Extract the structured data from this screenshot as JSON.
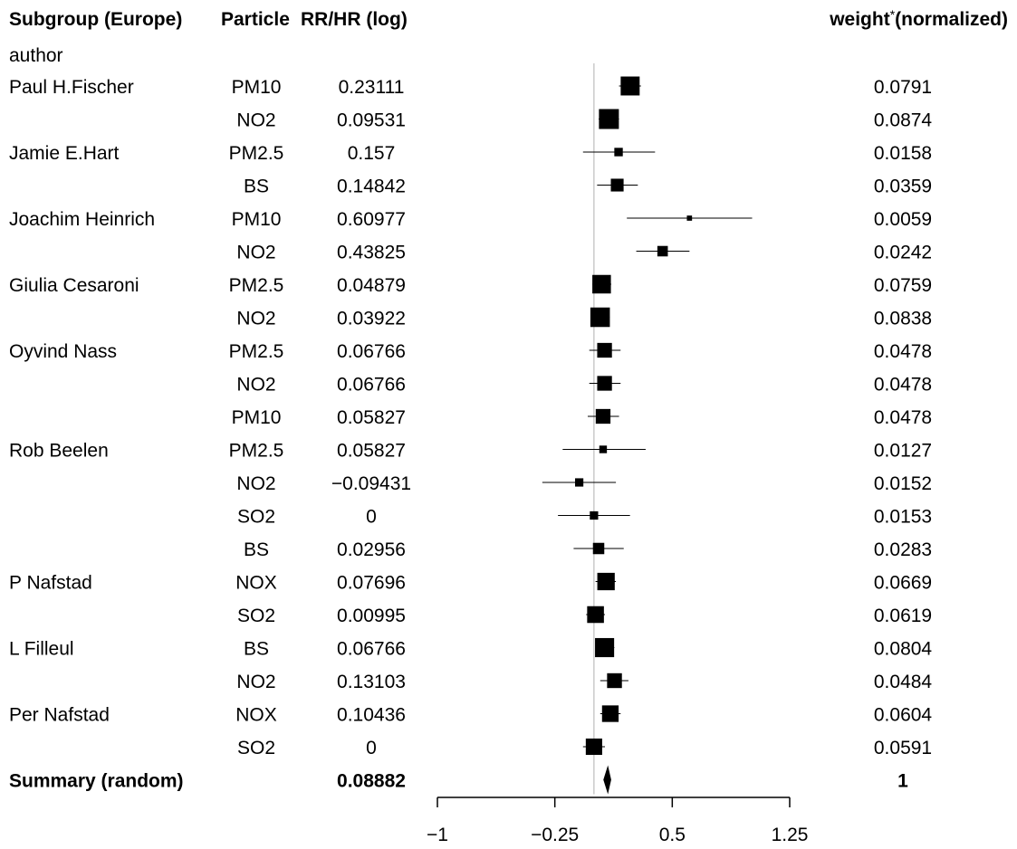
{
  "headers": {
    "subgroup": "Subgroup (Europe)",
    "particle": "Particle",
    "rrhr": "RR/HR (log)",
    "weight_main": "weight",
    "weight_star": "*",
    "weight_norm": "(normalized)",
    "author": "author"
  },
  "chart_data": {
    "type": "forest",
    "x_ticks": [
      "−1",
      "−0.25",
      "0.5",
      "1.25"
    ],
    "x_tick_values": [
      -1,
      -0.25,
      0.5,
      1.25
    ],
    "xlim": [
      -1,
      1.25
    ],
    "reference_line": 0,
    "colors": {
      "marks": "#000000",
      "reference_line": "#b0b0b0"
    },
    "rows": [
      {
        "author": "Paul H.Fischer",
        "particle": "PM10",
        "est_text": "0.23111",
        "est": 0.23111,
        "lo": 0.16,
        "hi": 0.3,
        "weight_text": "0.0791",
        "weight": 0.0791
      },
      {
        "author": "",
        "particle": "NO2",
        "est_text": "0.09531",
        "est": 0.09531,
        "lo": 0.03,
        "hi": 0.16,
        "weight_text": "0.0874",
        "weight": 0.0874
      },
      {
        "author": "Jamie E.Hart",
        "particle": "PM2.5",
        "est_text": "0.157",
        "est": 0.157,
        "lo": -0.07,
        "hi": 0.39,
        "weight_text": "0.0158",
        "weight": 0.0158
      },
      {
        "author": "",
        "particle": "BS",
        "est_text": "0.14842",
        "est": 0.14842,
        "lo": 0.02,
        "hi": 0.28,
        "weight_text": "0.0359",
        "weight": 0.0359
      },
      {
        "author": "Joachim Heinrich",
        "particle": "PM10",
        "est_text": "0.60977",
        "est": 0.60977,
        "lo": 0.21,
        "hi": 1.01,
        "weight_text": "0.0059",
        "weight": 0.0059
      },
      {
        "author": "",
        "particle": "NO2",
        "est_text": "0.43825",
        "est": 0.43825,
        "lo": 0.27,
        "hi": 0.61,
        "weight_text": "0.0242",
        "weight": 0.0242
      },
      {
        "author": "Giulia Cesaroni",
        "particle": "PM2.5",
        "est_text": "0.04879",
        "est": 0.04879,
        "lo": -0.01,
        "hi": 0.11,
        "weight_text": "0.0759",
        "weight": 0.0759
      },
      {
        "author": "",
        "particle": "NO2",
        "est_text": "0.03922",
        "est": 0.03922,
        "lo": -0.02,
        "hi": 0.1,
        "weight_text": "0.0838",
        "weight": 0.0838
      },
      {
        "author": "Oyvind Nass",
        "particle": "PM2.5",
        "est_text": "0.06766",
        "est": 0.06766,
        "lo": -0.03,
        "hi": 0.17,
        "weight_text": "0.0478",
        "weight": 0.0478
      },
      {
        "author": "",
        "particle": "NO2",
        "est_text": "0.06766",
        "est": 0.06766,
        "lo": -0.03,
        "hi": 0.17,
        "weight_text": "0.0478",
        "weight": 0.0478
      },
      {
        "author": "",
        "particle": "PM10",
        "est_text": "0.05827",
        "est": 0.05827,
        "lo": -0.04,
        "hi": 0.16,
        "weight_text": "0.0478",
        "weight": 0.0478
      },
      {
        "author": "Rob Beelen",
        "particle": "PM2.5",
        "est_text": "0.05827",
        "est": 0.05827,
        "lo": -0.2,
        "hi": 0.33,
        "weight_text": "0.0127",
        "weight": 0.0127
      },
      {
        "author": "",
        "particle": "NO2",
        "est_text": "−0.09431",
        "est": -0.09431,
        "lo": -0.33,
        "hi": 0.14,
        "weight_text": "0.0152",
        "weight": 0.0152
      },
      {
        "author": "",
        "particle": "SO2",
        "est_text": "0",
        "est": 0,
        "lo": -0.23,
        "hi": 0.23,
        "weight_text": "0.0153",
        "weight": 0.0153
      },
      {
        "author": "",
        "particle": "BS",
        "est_text": "0.02956",
        "est": 0.02956,
        "lo": -0.13,
        "hi": 0.19,
        "weight_text": "0.0283",
        "weight": 0.0283
      },
      {
        "author": "P Nafstad",
        "particle": "NOX",
        "est_text": "0.07696",
        "est": 0.07696,
        "lo": 0.01,
        "hi": 0.14,
        "weight_text": "0.0669",
        "weight": 0.0669
      },
      {
        "author": "",
        "particle": "SO2",
        "est_text": "0.00995",
        "est": 0.00995,
        "lo": -0.05,
        "hi": 0.07,
        "weight_text": "0.0619",
        "weight": 0.0619
      },
      {
        "author": "L Filleul",
        "particle": "BS",
        "est_text": "0.06766",
        "est": 0.06766,
        "lo": 0.01,
        "hi": 0.13,
        "weight_text": "0.0804",
        "weight": 0.0804
      },
      {
        "author": "",
        "particle": "NO2",
        "est_text": "0.13103",
        "est": 0.13103,
        "lo": 0.04,
        "hi": 0.22,
        "weight_text": "0.0484",
        "weight": 0.0484
      },
      {
        "author": "Per Nafstad",
        "particle": "NOX",
        "est_text": "0.10436",
        "est": 0.10436,
        "lo": 0.04,
        "hi": 0.17,
        "weight_text": "0.0604",
        "weight": 0.0604
      },
      {
        "author": "",
        "particle": "SO2",
        "est_text": "0",
        "est": 0,
        "lo": -0.07,
        "hi": 0.07,
        "weight_text": "0.0591",
        "weight": 0.0591
      }
    ],
    "summary": {
      "label": "Summary (random)",
      "est_text": "0.08882",
      "est": 0.08882,
      "lo": 0.06,
      "hi": 0.11,
      "weight_text": "1"
    }
  }
}
